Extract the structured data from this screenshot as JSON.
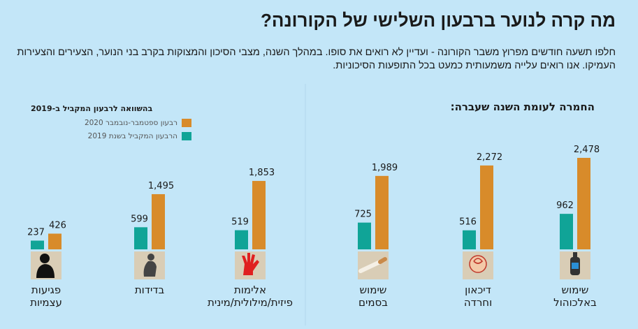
{
  "header": {
    "title": "מה קרה לנוער ברבעון השלישי של הקורונה?",
    "subtitle": "חלפו תשעה חודשים מפרוץ משבר הקורונה - ועדיין לא רואים את סופו. במהלך השנה, מצבי הסיכון והמצוקות בקרב בני הנוער, הצעירים והצעירות העמיקו. אנו רואים עלייה משמעותית כמעט בכל התופעות הסיכוניות."
  },
  "right_section": {
    "heading": "החמרה לעומת השנה שעברה:"
  },
  "left_section": {
    "heading": "בהשוואה לרבעון המקביל ב-2019"
  },
  "legend": [
    {
      "label": "רבעון ספטמבר-נובמבר 2020",
      "color": "#d88b2a"
    },
    {
      "label": "הרבעון המקביל בשנת 2019",
      "color": "#10a497"
    }
  ],
  "chart_data": {
    "type": "bar",
    "categories": [
      {
        "lines": [
          "שימוש",
          "באלכוהול"
        ],
        "icon": "alcohol-bottle-icon"
      },
      {
        "lines": [
          "דיכאון",
          "וחרדה"
        ],
        "icon": "anxious-head-icon"
      },
      {
        "lines": [
          "שימוש",
          "בסמים"
        ],
        "icon": "cigarette-icon"
      },
      {
        "lines": [
          "אלימות",
          "פיזית/מילולית/מינית"
        ],
        "icon": "raised-hand-icon"
      },
      {
        "lines": [
          "בדידות"
        ],
        "icon": "lonely-person-icon"
      },
      {
        "lines": [
          "פגיעות",
          "עצמיות"
        ],
        "icon": "self-harm-person-icon"
      }
    ],
    "series": [
      {
        "name": "הרבעון המקביל בשנת 2019",
        "color": "#10a497",
        "values": [
          962,
          516,
          725,
          519,
          599,
          237
        ]
      },
      {
        "name": "רבעון ספטמבר-נובמבר 2020",
        "color": "#d88b2a",
        "values": [
          2478,
          2272,
          1989,
          1853,
          1495,
          426
        ]
      }
    ],
    "value_labels": {
      "2019": [
        "962",
        "516",
        "725",
        "519",
        "599",
        "237"
      ],
      "2020": [
        "2,478",
        "2,272",
        "1,989",
        "1,853",
        "1,495",
        "426"
      ]
    },
    "ylim": [
      0,
      2478
    ],
    "grid": false,
    "legend_position": "top-left"
  }
}
